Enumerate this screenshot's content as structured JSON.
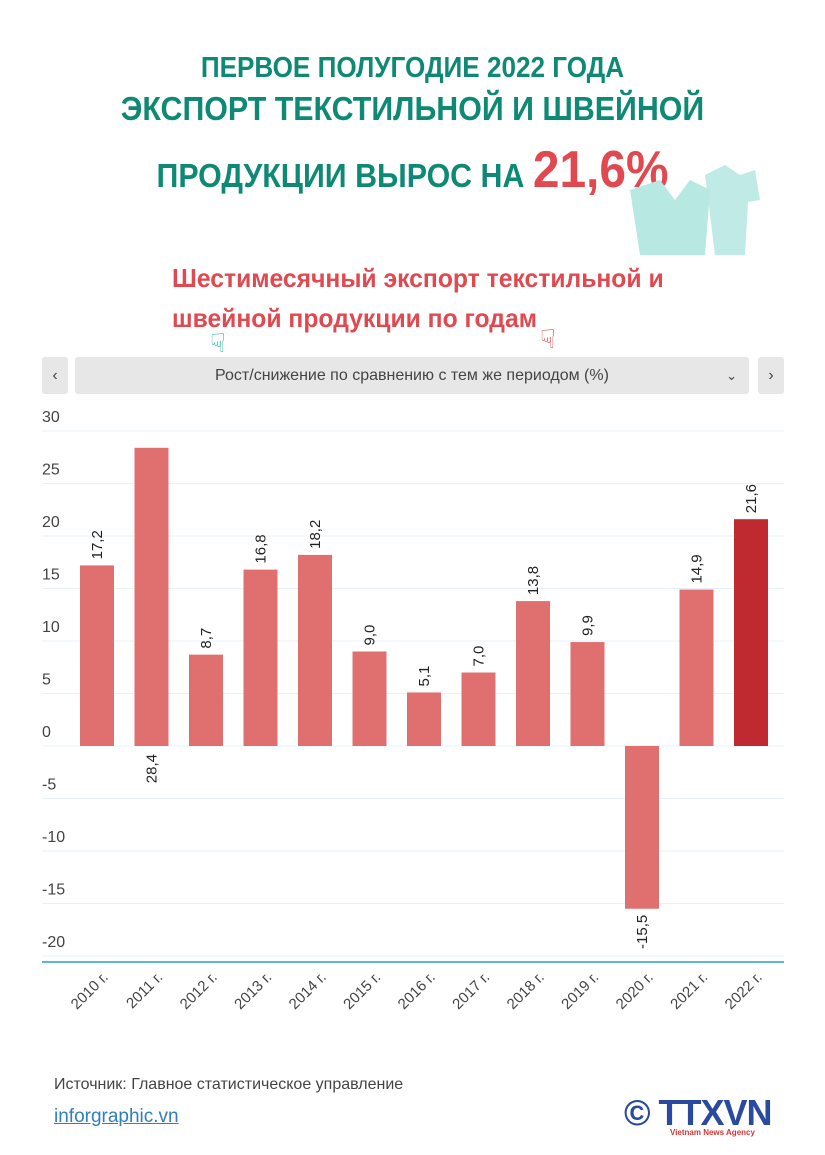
{
  "header": {
    "line1": "ПЕРВОЕ ПОЛУГОДИЕ 2022 ГОДА",
    "line2": "ЭКСПОРТ ТЕКСТИЛЬНОЙ И ШВЕЙНОЙ",
    "line3": "ПРОДУКЦИИ ВЫРОС НА",
    "highlight": "21,6%"
  },
  "subtitle": "Шестимесячный экспорт текстильной и швейной продукции по годам",
  "selector": {
    "prev": "‹",
    "label": "Рост/снижение по сравнению с тем же периодом (%)",
    "chevron": "⌄",
    "next": "›"
  },
  "footer": {
    "source": "Источник: Главное статистическое управление",
    "link": "inforgraphic.vn",
    "logo": "© TTXVN",
    "logo_tag": "Vietnam News Agency"
  },
  "colors": {
    "bar": "#e07070",
    "highlight_bar": "#c0292f",
    "title": "#0e8a74",
    "accent": "#e0494f"
  },
  "chart_data": {
    "type": "bar",
    "categories": [
      "2010 г.",
      "2011 г.",
      "2012 г.",
      "2013 г.",
      "2014 г.",
      "2015 г.",
      "2016 г.",
      "2017 г.",
      "2018 г.",
      "2019 г.",
      "2020 г.",
      "2021 г.",
      "2022 г."
    ],
    "values": [
      17.2,
      28.4,
      8.7,
      16.8,
      18.2,
      9.0,
      5.1,
      7.0,
      13.8,
      9.9,
      -15.5,
      14.9,
      21.6
    ],
    "labels": [
      "17,2",
      "28,4",
      "8,7",
      "16,8",
      "18,2",
      "9,0",
      "5,1",
      "7,0",
      "13,8",
      "9,9",
      "-15,5",
      "14,9",
      "21,6"
    ],
    "ylim": [
      -20,
      30
    ],
    "yticks": [
      30,
      25,
      20,
      15,
      10,
      5,
      0,
      -5,
      -10,
      -15,
      -20
    ],
    "grid": true,
    "highlight_index": 12
  }
}
